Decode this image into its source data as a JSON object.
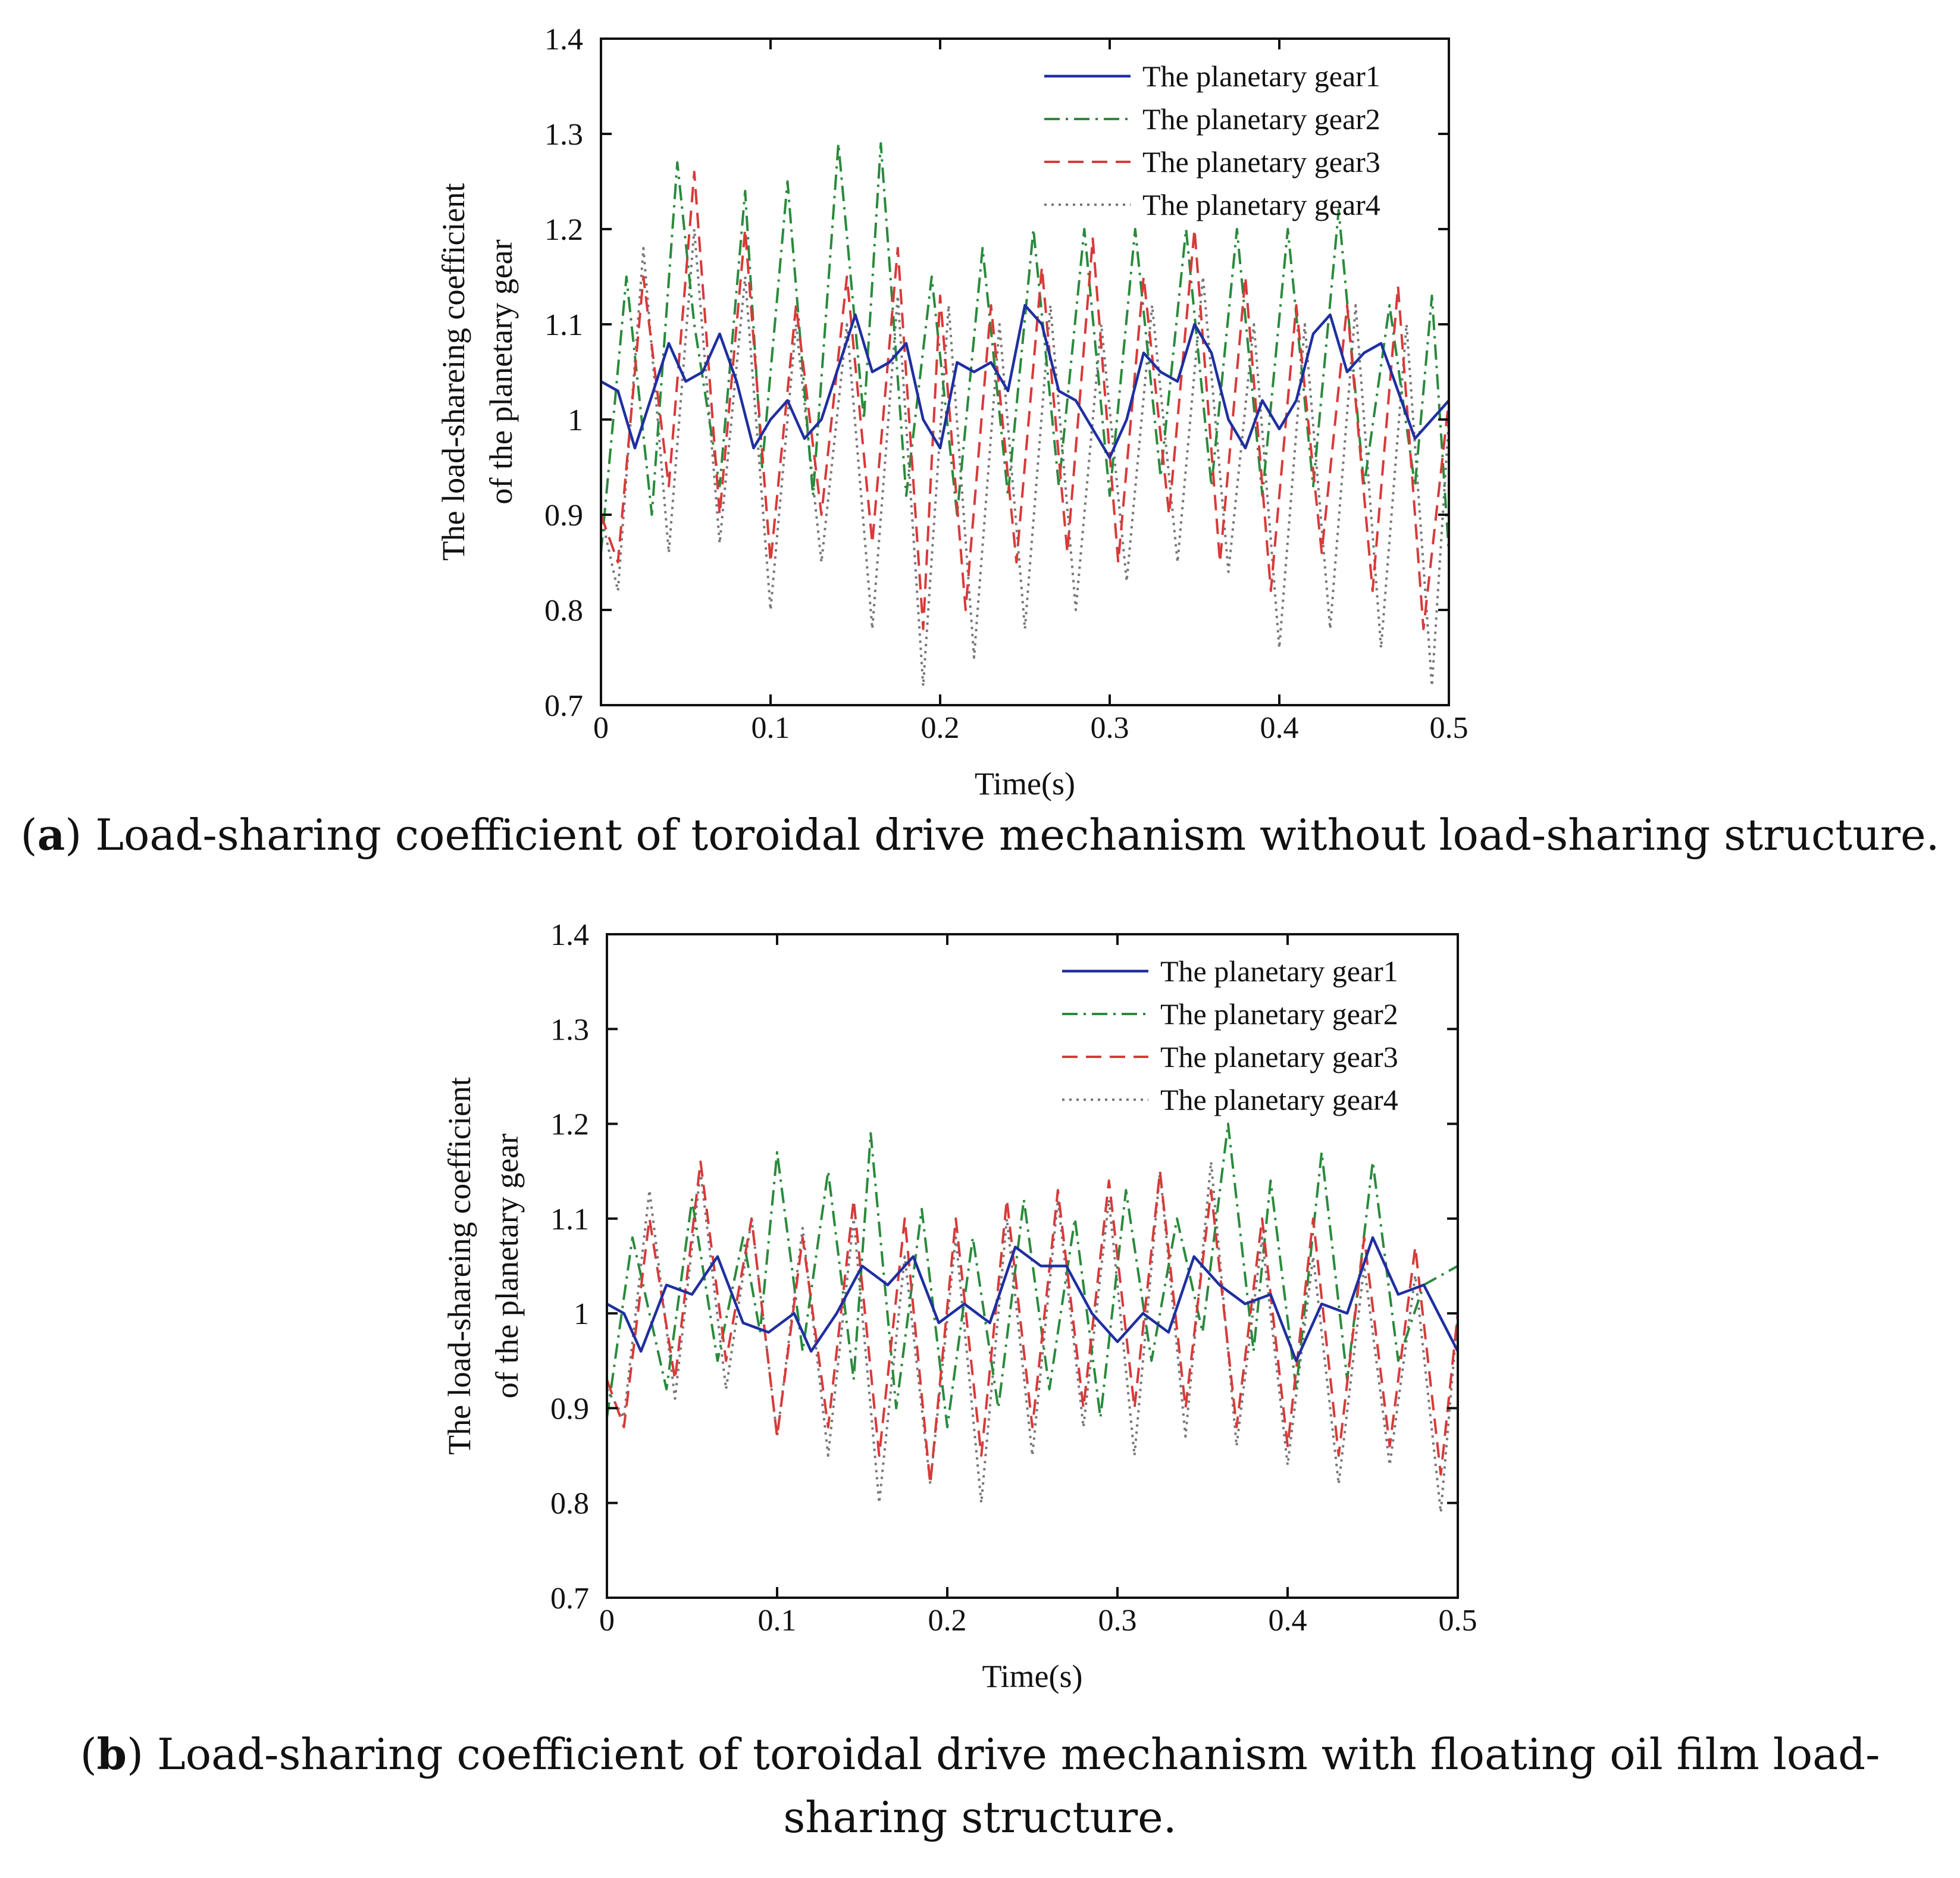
{
  "colors": {
    "gear1": "#1f2fa0",
    "gear2": "#2a8a3c",
    "gear3": "#d83a3a",
    "gear4": "#777777",
    "axis": "#111111"
  },
  "chart_data": [
    {
      "type": "line",
      "panel": "a",
      "title": "",
      "xlabel": "Time(s)",
      "ylabel": [
        "The load-shareing coefficient",
        "of the planetary gear"
      ],
      "xlim": [
        0,
        0.5
      ],
      "ylim": [
        0.7,
        1.4
      ],
      "xticks": [
        0,
        0.1,
        0.2,
        0.3,
        0.4,
        0.5
      ],
      "xtick_labels": [
        "0",
        "0.1",
        "0.2",
        "0.3",
        "0.4",
        "0.5"
      ],
      "yticks": [
        0.7,
        0.8,
        0.9,
        1.0,
        1.1,
        1.2,
        1.3,
        1.4
      ],
      "ytick_labels": [
        "0.7",
        "0.8",
        "0.9",
        "1",
        "1.1",
        "1.2",
        "1.3",
        "1.4"
      ],
      "legend_position": "top-right",
      "series": [
        {
          "name": "The planetary gear1",
          "style": "solid",
          "x": [
            0,
            0.01,
            0.02,
            0.04,
            0.05,
            0.06,
            0.07,
            0.08,
            0.09,
            0.1,
            0.11,
            0.12,
            0.13,
            0.15,
            0.16,
            0.17,
            0.18,
            0.19,
            0.2,
            0.21,
            0.22,
            0.23,
            0.24,
            0.25,
            0.26,
            0.27,
            0.28,
            0.3,
            0.31,
            0.32,
            0.33,
            0.34,
            0.35,
            0.36,
            0.37,
            0.38,
            0.39,
            0.4,
            0.41,
            0.42,
            0.43,
            0.44,
            0.45,
            0.46,
            0.47,
            0.48,
            0.49,
            0.5
          ],
          "y": [
            1.04,
            1.03,
            0.97,
            1.08,
            1.04,
            1.05,
            1.09,
            1.04,
            0.97,
            1.0,
            1.02,
            0.98,
            1.0,
            1.11,
            1.05,
            1.06,
            1.08,
            1.0,
            0.97,
            1.06,
            1.05,
            1.06,
            1.03,
            1.12,
            1.1,
            1.03,
            1.02,
            0.96,
            1.0,
            1.07,
            1.05,
            1.04,
            1.1,
            1.07,
            1.0,
            0.97,
            1.02,
            0.99,
            1.02,
            1.09,
            1.11,
            1.05,
            1.07,
            1.08,
            1.03,
            0.98,
            1.0,
            1.02
          ]
        },
        {
          "name": "The planetary gear2",
          "style": "dashdot",
          "x": [
            0,
            0.015,
            0.03,
            0.045,
            0.055,
            0.07,
            0.085,
            0.095,
            0.11,
            0.125,
            0.14,
            0.155,
            0.165,
            0.18,
            0.195,
            0.21,
            0.225,
            0.24,
            0.255,
            0.27,
            0.285,
            0.3,
            0.315,
            0.33,
            0.345,
            0.36,
            0.375,
            0.39,
            0.405,
            0.42,
            0.435,
            0.45,
            0.465,
            0.48,
            0.49,
            0.5
          ],
          "y": [
            0.86,
            1.15,
            0.9,
            1.27,
            1.1,
            0.93,
            1.24,
            0.95,
            1.25,
            0.92,
            1.29,
            1.0,
            1.29,
            0.92,
            1.15,
            0.9,
            1.18,
            0.92,
            1.2,
            0.93,
            1.2,
            0.92,
            1.2,
            0.94,
            1.2,
            0.93,
            1.2,
            0.92,
            1.2,
            0.93,
            1.22,
            0.93,
            1.12,
            0.93,
            1.13,
            0.86
          ]
        },
        {
          "name": "The planetary gear3",
          "style": "dashed",
          "x": [
            0,
            0.01,
            0.025,
            0.04,
            0.055,
            0.07,
            0.085,
            0.1,
            0.115,
            0.13,
            0.145,
            0.16,
            0.175,
            0.19,
            0.2,
            0.215,
            0.23,
            0.245,
            0.26,
            0.275,
            0.29,
            0.305,
            0.32,
            0.335,
            0.35,
            0.365,
            0.38,
            0.395,
            0.41,
            0.425,
            0.44,
            0.455,
            0.47,
            0.485,
            0.5
          ],
          "y": [
            0.9,
            0.85,
            1.15,
            0.93,
            1.26,
            0.9,
            1.2,
            0.85,
            1.12,
            0.9,
            1.15,
            0.87,
            1.18,
            0.78,
            1.13,
            0.8,
            1.12,
            0.85,
            1.16,
            0.86,
            1.19,
            0.85,
            1.15,
            0.9,
            1.2,
            0.85,
            1.15,
            0.82,
            1.12,
            0.86,
            1.12,
            0.82,
            1.14,
            0.78,
            1.02
          ]
        },
        {
          "name": "The planetary gear4",
          "style": "dotted",
          "x": [
            0,
            0.01,
            0.025,
            0.04,
            0.055,
            0.07,
            0.085,
            0.1,
            0.115,
            0.13,
            0.145,
            0.16,
            0.175,
            0.19,
            0.205,
            0.22,
            0.235,
            0.25,
            0.265,
            0.28,
            0.295,
            0.31,
            0.325,
            0.34,
            0.355,
            0.37,
            0.385,
            0.4,
            0.415,
            0.43,
            0.445,
            0.46,
            0.475,
            0.49,
            0.5
          ],
          "y": [
            0.9,
            0.82,
            1.18,
            0.86,
            1.2,
            0.87,
            1.15,
            0.8,
            1.1,
            0.85,
            1.1,
            0.78,
            1.13,
            0.72,
            1.12,
            0.75,
            1.1,
            0.78,
            1.12,
            0.8,
            1.1,
            0.83,
            1.12,
            0.85,
            1.15,
            0.84,
            1.1,
            0.76,
            1.1,
            0.78,
            1.12,
            0.76,
            1.1,
            0.72,
            1.0
          ]
        }
      ],
      "caption_label": "a",
      "caption_text": " Load-sharing coefficient of toroidal drive mechanism without load-sharing structure."
    },
    {
      "type": "line",
      "panel": "b",
      "title": "",
      "xlabel": "Time(s)",
      "ylabel": [
        "The load-shareing coefficient",
        "of the planetary gear"
      ],
      "xlim": [
        0,
        0.5
      ],
      "ylim": [
        0.7,
        1.4
      ],
      "xticks": [
        0,
        0.1,
        0.2,
        0.3,
        0.4,
        0.5
      ],
      "xtick_labels": [
        "0",
        "0.1",
        "0.2",
        "0.3",
        "0.4",
        "0.5"
      ],
      "yticks": [
        0.7,
        0.8,
        0.9,
        1.0,
        1.1,
        1.2,
        1.3,
        1.4
      ],
      "ytick_labels": [
        "0.7",
        "0.8",
        "0.9",
        "1",
        "1.1",
        "1.2",
        "1.3",
        "1.4"
      ],
      "legend_position": "top-right",
      "series": [
        {
          "name": "The planetary gear1",
          "style": "solid",
          "x": [
            0,
            0.01,
            0.02,
            0.035,
            0.05,
            0.065,
            0.08,
            0.095,
            0.11,
            0.12,
            0.135,
            0.15,
            0.165,
            0.18,
            0.195,
            0.21,
            0.225,
            0.24,
            0.255,
            0.27,
            0.285,
            0.3,
            0.315,
            0.33,
            0.345,
            0.36,
            0.375,
            0.39,
            0.405,
            0.42,
            0.435,
            0.45,
            0.465,
            0.48,
            0.5
          ],
          "y": [
            1.01,
            1.0,
            0.96,
            1.03,
            1.02,
            1.06,
            0.99,
            0.98,
            1.0,
            0.96,
            1.0,
            1.05,
            1.03,
            1.06,
            0.99,
            1.01,
            0.99,
            1.07,
            1.05,
            1.05,
            1.0,
            0.97,
            1.0,
            0.98,
            1.06,
            1.03,
            1.01,
            1.02,
            0.95,
            1.01,
            1.0,
            1.08,
            1.02,
            1.03,
            0.96
          ]
        },
        {
          "name": "The planetary gear2",
          "style": "dashdot",
          "x": [
            0,
            0.015,
            0.035,
            0.05,
            0.065,
            0.08,
            0.09,
            0.1,
            0.115,
            0.13,
            0.145,
            0.155,
            0.17,
            0.185,
            0.2,
            0.215,
            0.23,
            0.245,
            0.26,
            0.275,
            0.29,
            0.305,
            0.32,
            0.335,
            0.35,
            0.365,
            0.38,
            0.39,
            0.405,
            0.42,
            0.435,
            0.45,
            0.465,
            0.48,
            0.5
          ],
          "y": [
            0.89,
            1.08,
            0.92,
            1.12,
            0.95,
            1.08,
            0.98,
            1.17,
            0.96,
            1.15,
            0.93,
            1.19,
            0.9,
            1.11,
            0.88,
            1.08,
            0.9,
            1.12,
            0.92,
            1.1,
            0.89,
            1.13,
            0.95,
            1.1,
            0.98,
            1.2,
            0.96,
            1.14,
            0.92,
            1.17,
            0.93,
            1.16,
            0.95,
            1.03,
            1.05
          ]
        },
        {
          "name": "The planetary gear3",
          "style": "dashed",
          "x": [
            0,
            0.01,
            0.025,
            0.04,
            0.055,
            0.07,
            0.085,
            0.1,
            0.115,
            0.13,
            0.145,
            0.16,
            0.175,
            0.19,
            0.205,
            0.22,
            0.235,
            0.25,
            0.265,
            0.28,
            0.295,
            0.31,
            0.325,
            0.34,
            0.355,
            0.37,
            0.385,
            0.4,
            0.415,
            0.43,
            0.445,
            0.46,
            0.475,
            0.49,
            0.5
          ],
          "y": [
            0.93,
            0.88,
            1.1,
            0.93,
            1.16,
            0.95,
            1.1,
            0.87,
            1.08,
            0.88,
            1.12,
            0.85,
            1.1,
            0.82,
            1.1,
            0.85,
            1.12,
            0.88,
            1.13,
            0.9,
            1.14,
            0.9,
            1.15,
            0.9,
            1.13,
            0.88,
            1.1,
            0.86,
            1.1,
            0.85,
            1.08,
            0.86,
            1.07,
            0.83,
            1.0
          ]
        },
        {
          "name": "The planetary gear4",
          "style": "dotted",
          "x": [
            0,
            0.01,
            0.025,
            0.04,
            0.055,
            0.07,
            0.085,
            0.1,
            0.115,
            0.13,
            0.145,
            0.16,
            0.175,
            0.19,
            0.205,
            0.22,
            0.235,
            0.25,
            0.265,
            0.28,
            0.295,
            0.31,
            0.325,
            0.34,
            0.355,
            0.37,
            0.385,
            0.4,
            0.415,
            0.43,
            0.445,
            0.46,
            0.475,
            0.49,
            0.5
          ],
          "y": [
            0.92,
            0.89,
            1.13,
            0.91,
            1.15,
            0.92,
            1.1,
            0.87,
            1.09,
            0.85,
            1.1,
            0.8,
            1.06,
            0.82,
            1.08,
            0.8,
            1.1,
            0.85,
            1.12,
            0.88,
            1.12,
            0.85,
            1.15,
            0.87,
            1.16,
            0.86,
            1.08,
            0.84,
            1.06,
            0.82,
            1.05,
            0.84,
            1.04,
            0.79,
            1.0
          ]
        }
      ],
      "caption_label": "b",
      "caption_text": " Load-sharing coefficient of toroidal drive mechanism with floating oil film load-sharing structure."
    }
  ]
}
